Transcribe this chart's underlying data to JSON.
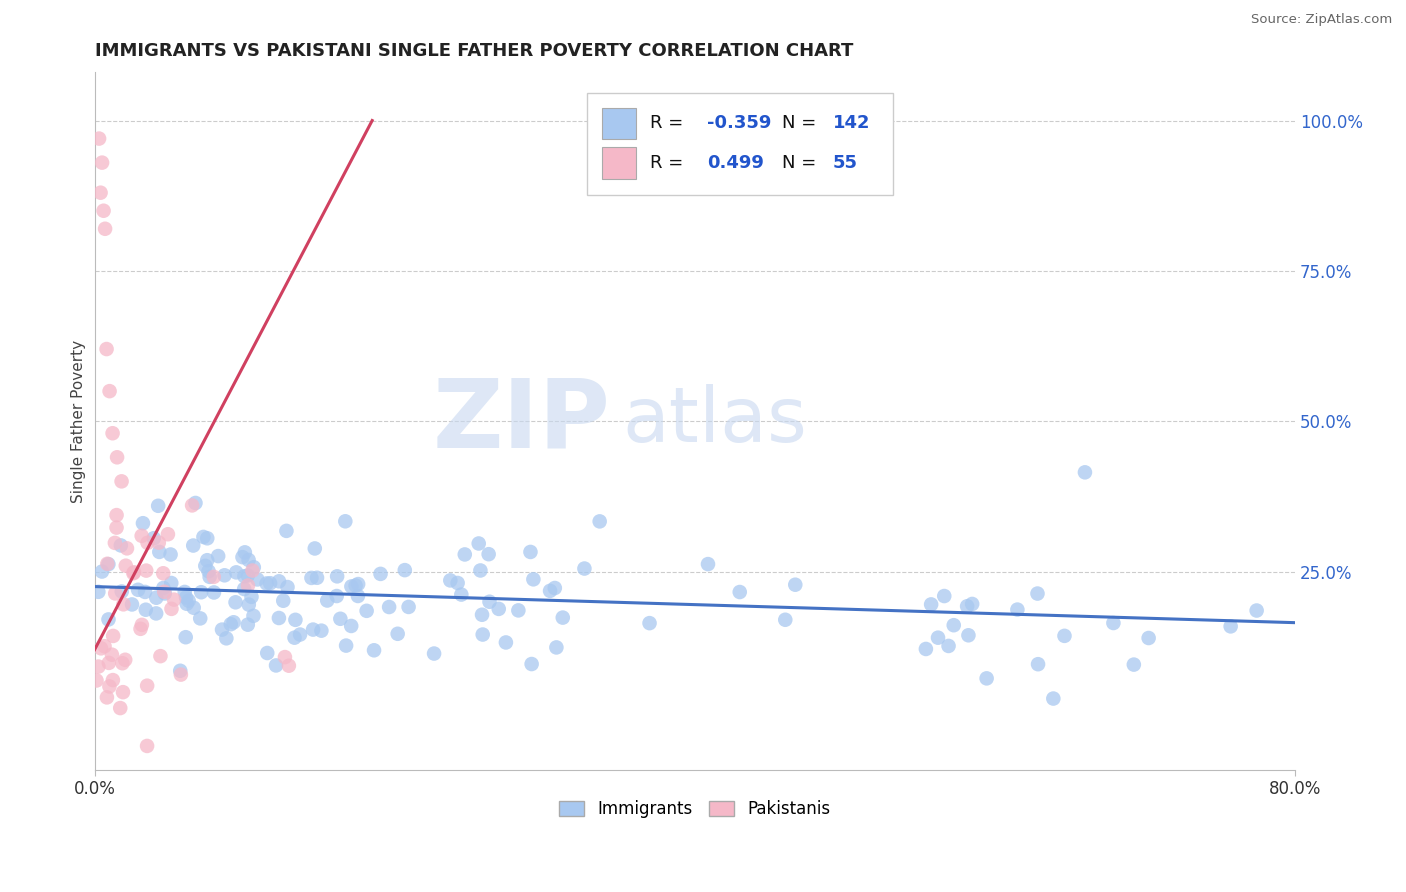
{
  "title": "IMMIGRANTS VS PAKISTANI SINGLE FATHER POVERTY CORRELATION CHART",
  "source": "Source: ZipAtlas.com",
  "ylabel": "Single Father Poverty",
  "legend": {
    "blue_label": "Immigrants",
    "pink_label": "Pakistanis",
    "blue_R": "-0.359",
    "blue_N": "142",
    "pink_R": "0.499",
    "pink_N": "55"
  },
  "blue_color": "#a8c8f0",
  "pink_color": "#f5b8c8",
  "trend_blue": "#4472c4",
  "trend_pink": "#d04060",
  "background": "#ffffff",
  "grid_color": "#cccccc",
  "xlim": [
    0.0,
    0.8
  ],
  "ylim": [
    -0.08,
    1.08
  ],
  "blue_trend_x": [
    0.0,
    0.8
  ],
  "blue_trend_y": [
    0.225,
    0.165
  ],
  "pink_trend_x": [
    0.0,
    0.185
  ],
  "pink_trend_y": [
    0.12,
    1.0
  ]
}
